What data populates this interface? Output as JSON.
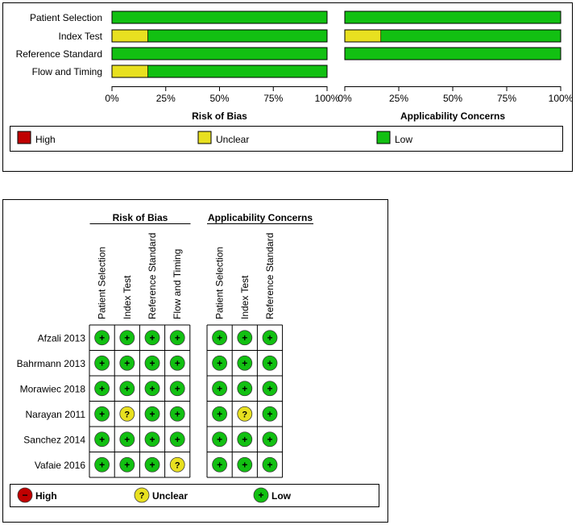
{
  "colors": {
    "high": "#c00000",
    "unclear": "#e8e020",
    "low": "#12c012"
  },
  "symbols": {
    "low": "+",
    "unclear": "?",
    "high": "−"
  },
  "chart_data": [
    {
      "type": "bar",
      "orientation": "horizontal-stacked-100",
      "categories": [
        "Patient Selection",
        "Index Test",
        "Reference Standard",
        "Flow and Timing"
      ],
      "panels": [
        {
          "title": "Risk of Bias",
          "series": [
            {
              "name": "High",
              "key": "high",
              "values": [
                0,
                0,
                0,
                0
              ]
            },
            {
              "name": "Unclear",
              "key": "unclear",
              "values": [
                0,
                16.7,
                0,
                16.7
              ]
            },
            {
              "name": "Low",
              "key": "low",
              "values": [
                100,
                83.3,
                100,
                83.3
              ]
            }
          ]
        },
        {
          "title": "Applicability Concerns",
          "series": [
            {
              "name": "High",
              "key": "high",
              "values": [
                0,
                0,
                0,
                null
              ]
            },
            {
              "name": "Unclear",
              "key": "unclear",
              "values": [
                0,
                16.7,
                0,
                null
              ]
            },
            {
              "name": "Low",
              "key": "low",
              "values": [
                100,
                83.3,
                100,
                null
              ]
            }
          ]
        }
      ],
      "xticks": [
        "0%",
        "25%",
        "50%",
        "75%",
        "100%"
      ],
      "xlim": [
        0,
        100
      ],
      "legend": [
        {
          "key": "high",
          "label": "High"
        },
        {
          "key": "unclear",
          "label": "Unclear"
        },
        {
          "key": "low",
          "label": "Low"
        }
      ]
    },
    {
      "type": "table",
      "groups": [
        {
          "title": "Risk of Bias",
          "columns": [
            "Patient Selection",
            "Index Test",
            "Reference Standard",
            "Flow and Timing"
          ]
        },
        {
          "title": "Applicability Concerns",
          "columns": [
            "Patient Selection",
            "Index Test",
            "Reference Standard"
          ]
        }
      ],
      "rows": [
        {
          "study": "Afzali 2013",
          "bias": [
            "low",
            "low",
            "low",
            "low"
          ],
          "applicability": [
            "low",
            "low",
            "low"
          ]
        },
        {
          "study": "Bahrmann 2013",
          "bias": [
            "low",
            "low",
            "low",
            "low"
          ],
          "applicability": [
            "low",
            "low",
            "low"
          ]
        },
        {
          "study": "Morawiec 2018",
          "bias": [
            "low",
            "low",
            "low",
            "low"
          ],
          "applicability": [
            "low",
            "low",
            "low"
          ]
        },
        {
          "study": "Narayan 2011",
          "bias": [
            "low",
            "unclear",
            "low",
            "low"
          ],
          "applicability": [
            "low",
            "unclear",
            "low"
          ]
        },
        {
          "study": "Sanchez 2014",
          "bias": [
            "low",
            "low",
            "low",
            "low"
          ],
          "applicability": [
            "low",
            "low",
            "low"
          ]
        },
        {
          "study": "Vafaie 2016",
          "bias": [
            "low",
            "low",
            "low",
            "unclear"
          ],
          "applicability": [
            "low",
            "low",
            "low"
          ]
        }
      ],
      "legend": [
        {
          "key": "high",
          "label": "High"
        },
        {
          "key": "unclear",
          "label": "Unclear"
        },
        {
          "key": "low",
          "label": "Low"
        }
      ]
    }
  ]
}
